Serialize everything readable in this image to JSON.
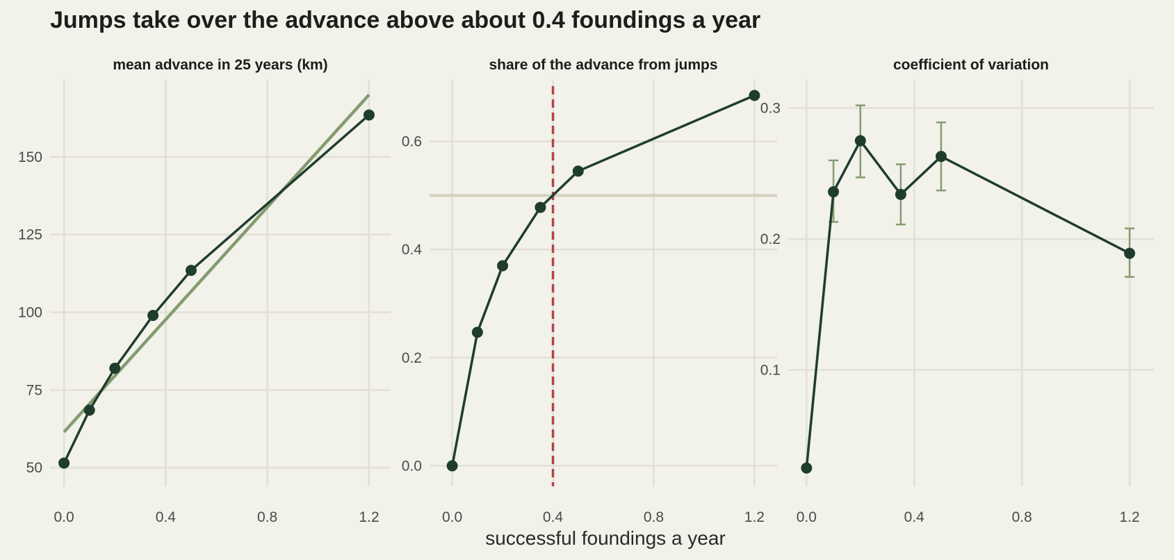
{
  "title": "Jumps take over the advance above about 0.4 foundings a year",
  "xlabel": "successful foundings a year",
  "colors": {
    "background": "#f2f1ea",
    "grid": "#e1e0d6",
    "series": "#1f3d2d",
    "fit": "#849b70",
    "reference_h": "#d3d2c0",
    "reference_v": "#b24545",
    "errorbar": "#849b70"
  },
  "chart_data": [
    {
      "type": "line",
      "title": "mean advance in 25 years (km)",
      "x": [
        0.0,
        0.1,
        0.2,
        0.35,
        0.5,
        1.2
      ],
      "values": [
        51.5,
        68.5,
        82,
        99,
        113.5,
        163.5
      ],
      "xticks": [
        0.0,
        0.4,
        0.8,
        1.2
      ],
      "xtick_labels": [
        "0.0",
        "0.4",
        "0.8",
        "1.2"
      ],
      "yticks": [
        50,
        75,
        100,
        125,
        150
      ],
      "ytick_labels": [
        "50",
        "75",
        "100",
        "125",
        "150"
      ],
      "xlim": [
        -0.055,
        1.285
      ],
      "ylim": [
        44,
        175
      ],
      "fit_line": {
        "x": [
          0.0,
          1.2
        ],
        "y": [
          61.5,
          170
        ]
      },
      "grid": true
    },
    {
      "type": "line",
      "title": "share of the advance from jumps",
      "x": [
        0.0,
        0.1,
        0.2,
        0.35,
        0.5,
        1.2
      ],
      "values": [
        0.0,
        0.247,
        0.37,
        0.478,
        0.545,
        0.685
      ],
      "xticks": [
        0.0,
        0.4,
        0.8,
        1.2
      ],
      "xtick_labels": [
        "0.0",
        "0.4",
        "0.8",
        "1.2"
      ],
      "yticks": [
        0.0,
        0.2,
        0.4,
        0.6
      ],
      "ytick_labels": [
        "0.0",
        "0.2",
        "0.4",
        "0.6"
      ],
      "xlim": [
        -0.09,
        1.29
      ],
      "ylim": [
        -0.038,
        0.715
      ],
      "reference_hline": 0.5,
      "reference_vline": 0.4,
      "grid": true
    },
    {
      "type": "line",
      "title": "coefficient of variation",
      "x": [
        0.0,
        0.1,
        0.2,
        0.35,
        0.5,
        1.2
      ],
      "values": [
        0.025,
        0.236,
        0.275,
        0.234,
        0.263,
        0.189
      ],
      "error_low": [
        null,
        0.213,
        0.247,
        0.211,
        0.237,
        0.171
      ],
      "error_high": [
        null,
        0.26,
        0.302,
        0.257,
        0.289,
        0.208
      ],
      "xticks": [
        0.0,
        0.4,
        0.8,
        1.2
      ],
      "xtick_labels": [
        "0.0",
        "0.4",
        "0.8",
        "1.2"
      ],
      "yticks": [
        0.1,
        0.2,
        0.3
      ],
      "ytick_labels": [
        "0.1",
        "0.2",
        "0.3"
      ],
      "xlim": [
        -0.068,
        1.29
      ],
      "ylim": [
        0.011,
        0.322
      ],
      "grid": true
    }
  ]
}
